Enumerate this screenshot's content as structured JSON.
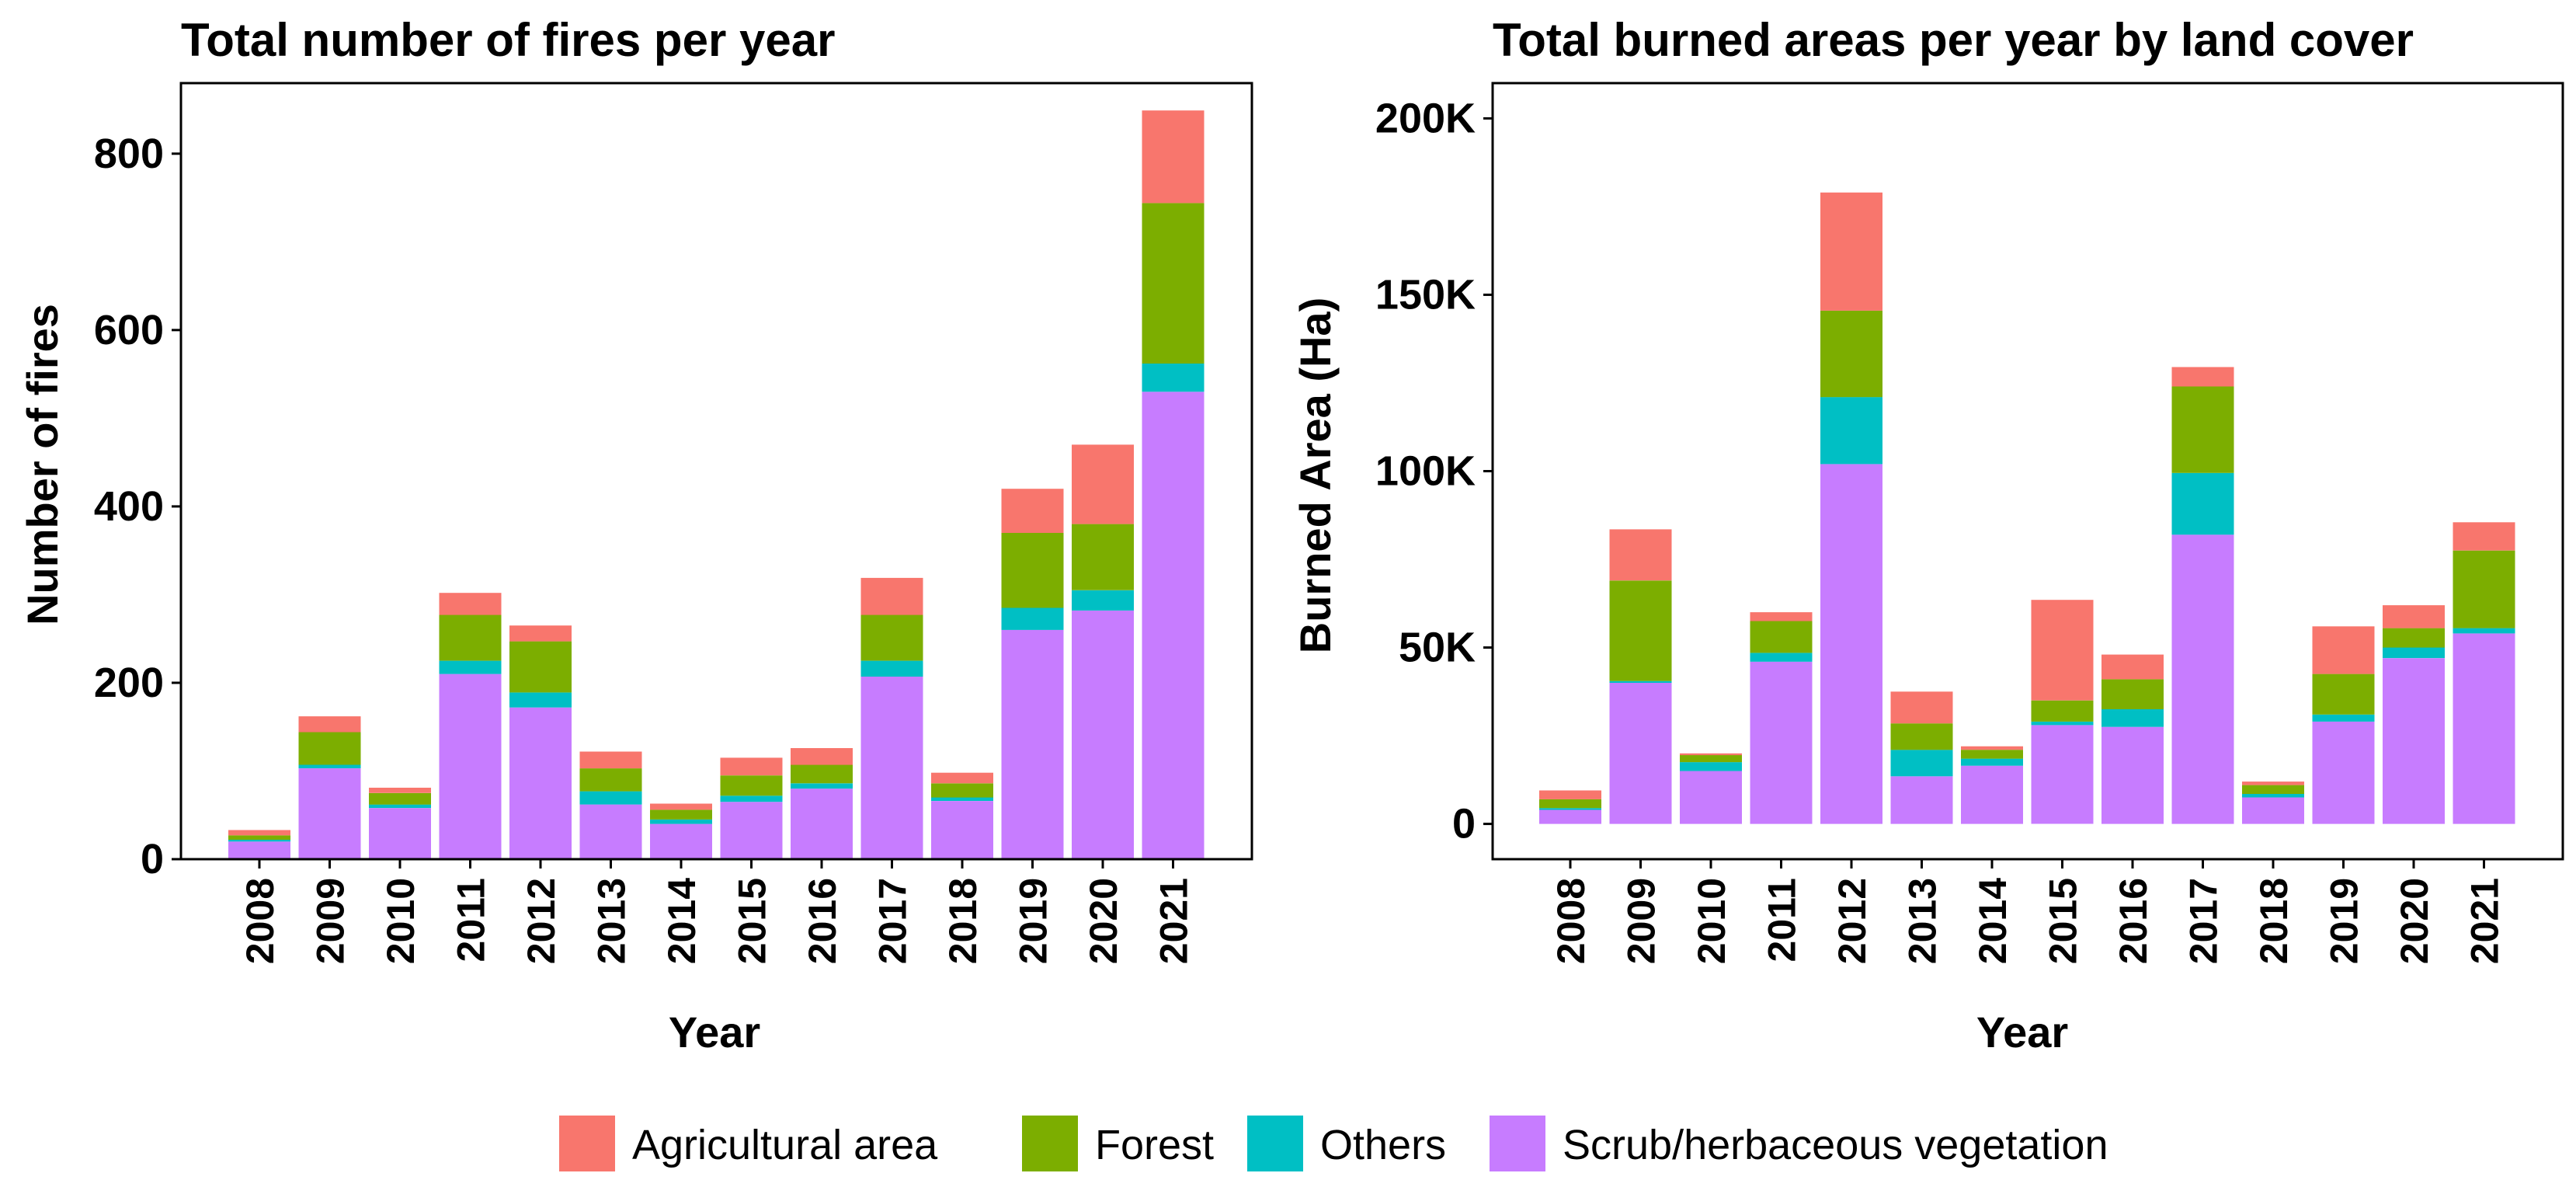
{
  "chart_data": [
    {
      "type": "bar",
      "stacked": true,
      "title": "Total number of fires per year",
      "xlabel": "Year",
      "ylabel": "Number of fires",
      "ylim": [
        0,
        880
      ],
      "yticks": [
        0,
        200,
        400,
        600,
        800
      ],
      "ytick_labels": [
        "0",
        "200",
        "400",
        "600",
        "800"
      ],
      "categories": [
        "2008",
        "2009",
        "2010",
        "2011",
        "2012",
        "2013",
        "2014",
        "2015",
        "2016",
        "2017",
        "2018",
        "2019",
        "2020",
        "2021"
      ],
      "series": [
        {
          "name": "Scrub/herbaceous vegetation",
          "values": [
            20,
            103,
            58,
            210,
            172,
            62,
            40,
            65,
            80,
            207,
            66,
            260,
            282,
            530
          ]
        },
        {
          "name": "Others",
          "values": [
            2,
            4,
            4,
            15,
            17,
            15,
            5,
            7,
            6,
            18,
            4,
            25,
            23,
            32
          ]
        },
        {
          "name": "Forest",
          "values": [
            5,
            37,
            13,
            52,
            58,
            26,
            11,
            23,
            21,
            52,
            16,
            85,
            75,
            182
          ]
        },
        {
          "name": "Agricultural area",
          "values": [
            6,
            18,
            6,
            25,
            18,
            19,
            7,
            20,
            19,
            42,
            12,
            50,
            90,
            105
          ]
        }
      ]
    },
    {
      "type": "bar",
      "stacked": true,
      "title": "Total burned areas per year by land cover",
      "xlabel": "Year",
      "ylabel": "Burned Area (Ha)",
      "ylim": [
        -10000,
        210000
      ],
      "yticks": [
        0,
        50000,
        100000,
        150000,
        200000
      ],
      "ytick_labels": [
        "0",
        "50K",
        "100K",
        "150K",
        "200K"
      ],
      "categories": [
        "2008",
        "2009",
        "2010",
        "2011",
        "2012",
        "2013",
        "2014",
        "2015",
        "2016",
        "2017",
        "2018",
        "2019",
        "2020",
        "2021"
      ],
      "series": [
        {
          "name": "Scrub/herbaceous vegetation",
          "values": [
            4000,
            40000,
            15000,
            46000,
            102000,
            13500,
            16500,
            28000,
            27500,
            82000,
            7500,
            29000,
            47000,
            54000
          ]
        },
        {
          "name": "Others",
          "values": [
            500,
            500,
            2500,
            2500,
            19000,
            7500,
            2000,
            1000,
            5000,
            17500,
            1000,
            2000,
            3000,
            1500
          ]
        },
        {
          "name": "Forest",
          "values": [
            2500,
            28500,
            2000,
            9000,
            24500,
            7500,
            2500,
            6000,
            8500,
            24500,
            2500,
            11500,
            5500,
            22000
          ]
        },
        {
          "name": "Agricultural area",
          "values": [
            2500,
            14500,
            500,
            2500,
            33500,
            9000,
            1000,
            28500,
            7000,
            5500,
            1000,
            13500,
            6500,
            8000
          ]
        }
      ]
    }
  ],
  "legend": {
    "position": "bottom",
    "items": [
      {
        "label": "Agricultural area",
        "color": "#F8766D"
      },
      {
        "label": "Forest",
        "color": "#7CAE00"
      },
      {
        "label": "Others",
        "color": "#00BFC4"
      },
      {
        "label": "Scrub/herbaceous vegetation",
        "color": "#C77CFF"
      }
    ]
  },
  "colors": {
    "Agricultural area": "#F8766D",
    "Forest": "#7CAE00",
    "Others": "#00BFC4",
    "Scrub/herbaceous vegetation": "#C77CFF"
  }
}
